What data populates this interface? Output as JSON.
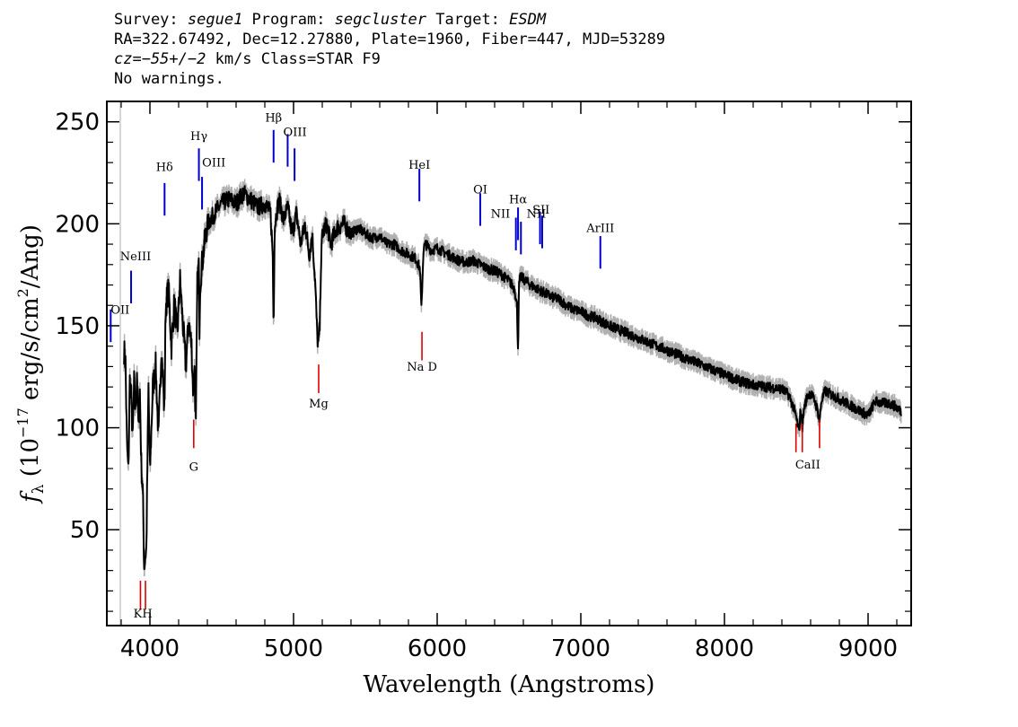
{
  "header": {
    "line1_a": "Survey: ",
    "survey": "segue1",
    "line1_b": " Program: ",
    "program": "segcluster",
    "line1_c": " Target: ",
    "target": "ESDM",
    "line2": "RA=322.67492, Dec=12.27880, Plate=1960, Fiber=447, MJD=53289",
    "line3_cz": "cz=−55+/−2",
    "line3_rest": " km/s Class=STAR F9",
    "line4": "No warnings."
  },
  "chart_data": {
    "type": "line",
    "xlabel": "Wavelength (Angstroms)",
    "ylabel": "f_λ (10^-17 erg/s/cm^2/Ang)",
    "xlim": [
      3700,
      9300
    ],
    "ylim": [
      3,
      260
    ],
    "x_ticks": [
      4000,
      5000,
      6000,
      7000,
      8000,
      9000
    ],
    "y_ticks": [
      50,
      100,
      150,
      200,
      250
    ],
    "grid": false,
    "series": [
      {
        "color": "#000000",
        "x": [
          3820,
          3830,
          3840,
          3850,
          3860,
          3870,
          3880,
          3890,
          3900,
          3910,
          3920,
          3930,
          3940,
          3950,
          3960,
          3968,
          3975,
          3990,
          4000,
          4020,
          4040,
          4060,
          4080,
          4090,
          4100,
          4102,
          4110,
          4130,
          4150,
          4170,
          4190,
          4210,
          4230,
          4250,
          4270,
          4290,
          4300,
          4310,
          4320,
          4330,
          4340,
          4345,
          4350,
          4370,
          4400,
          4450,
          4500,
          4550,
          4600,
          4650,
          4700,
          4750,
          4800,
          4840,
          4855,
          4861,
          4868,
          4880,
          4900,
          4930,
          4960,
          4990,
          5020,
          5050,
          5080,
          5110,
          5130,
          5150,
          5165,
          5172,
          5183,
          5190,
          5200,
          5230,
          5260,
          5300,
          5350,
          5400,
          5450,
          5500,
          5550,
          5600,
          5650,
          5700,
          5750,
          5800,
          5850,
          5880,
          5890,
          5896,
          5905,
          5920,
          5960,
          6000,
          6050,
          6100,
          6150,
          6200,
          6250,
          6300,
          6350,
          6400,
          6450,
          6500,
          6540,
          6555,
          6563,
          6570,
          6580,
          6600,
          6650,
          6700,
          6750,
          6800,
          6850,
          6900,
          6950,
          7000,
          7050,
          7100,
          7150,
          7200,
          7300,
          7400,
          7500,
          7600,
          7700,
          7800,
          7900,
          8000,
          8100,
          8200,
          8300,
          8400,
          8450,
          8480,
          8500,
          8520,
          8530,
          8542,
          8555,
          8580,
          8600,
          8630,
          8650,
          8662,
          8675,
          8700,
          8750,
          8800,
          8850,
          8900,
          8950,
          9000,
          9050,
          9100,
          9150,
          9200,
          9230
        ],
        "values": [
          138,
          132,
          92,
          78,
          123,
          115,
          93,
          122,
          108,
          128,
          100,
          118,
          82,
          70,
          32,
          38,
          40,
          120,
          78,
          120,
          130,
          95,
          140,
          125,
          108,
          115,
          160,
          168,
          140,
          162,
          145,
          172,
          150,
          130,
          152,
          140,
          120,
          128,
          100,
          170,
          180,
          150,
          172,
          185,
          200,
          205,
          210,
          212,
          210,
          215,
          212,
          208,
          210,
          205,
          185,
          148,
          198,
          205,
          212,
          202,
          208,
          195,
          205,
          190,
          200,
          185,
          195,
          172,
          145,
          140,
          150,
          178,
          195,
          200,
          190,
          198,
          200,
          195,
          198,
          195,
          193,
          194,
          190,
          190,
          187,
          185,
          183,
          178,
          158,
          170,
          188,
          190,
          187,
          188,
          186,
          184,
          182,
          181,
          182,
          180,
          178,
          177,
          175,
          172,
          168,
          160,
          138,
          170,
          174,
          173,
          170,
          168,
          166,
          164,
          163,
          160,
          158,
          157,
          155,
          154,
          152,
          150,
          147,
          144,
          141,
          138,
          135,
          132,
          129,
          126,
          123,
          121,
          120,
          119,
          116,
          110,
          105,
          98,
          110,
          100,
          110,
          116,
          117,
          113,
          108,
          103,
          113,
          118,
          116,
          114,
          112,
          110,
          108,
          106,
          113,
          112,
          112,
          110,
          108
        ]
      }
    ],
    "emission_lines": [
      {
        "label": "OII",
        "wavelength": 3727,
        "y": 150
      },
      {
        "label": "NeIII",
        "wavelength": 3869,
        "y": 169
      },
      {
        "label": "Hδ",
        "wavelength": 4102,
        "y": 212
      },
      {
        "label": "Hγ",
        "wavelength": 4341,
        "y": 229
      },
      {
        "label": "OIII",
        "wavelength": 4363,
        "y": 215
      },
      {
        "label": "Hβ",
        "wavelength": 4861,
        "y": 238
      },
      {
        "label": "OIII",
        "wavelength": 4959,
        "y": 236
      },
      {
        "label": "OIII",
        "wavelength": 5007,
        "y": 229
      },
      {
        "label": "HeI",
        "wavelength": 5876,
        "y": 219
      },
      {
        "label": "OI",
        "wavelength": 6300,
        "y": 207
      },
      {
        "label": "NII",
        "wavelength": 6548,
        "y": 195
      },
      {
        "label": "Hα",
        "wavelength": 6563,
        "y": 200
      },
      {
        "label": "NII",
        "wavelength": 6583,
        "y": 193
      },
      {
        "label": "SII",
        "wavelength": 6716,
        "y": 198
      },
      {
        "label": "SII",
        "wavelength": 6731,
        "y": 196
      },
      {
        "label": "ArIII",
        "wavelength": 7136,
        "y": 186
      }
    ],
    "absorption_lines": [
      {
        "label": "K",
        "wavelength": 3934,
        "y": 18
      },
      {
        "label": "H",
        "wavelength": 3969,
        "y": 18
      },
      {
        "label": "G",
        "wavelength": 4305,
        "y": 97
      },
      {
        "label": "Mg",
        "wavelength": 5175,
        "y": 124
      },
      {
        "label": "Na",
        "wavelength": 5894,
        "y": 140
      },
      {
        "label": "CaII",
        "wavelength": 8498,
        "y": 95
      },
      {
        "label": "CaII",
        "wavelength": 8542,
        "y": 95
      },
      {
        "label": "CaII",
        "wavelength": 8662,
        "y": 97
      }
    ],
    "line_text": {
      "OII": "OII",
      "NeIII": "NeIII",
      "Hd": "Hδ",
      "Hg": "Hγ",
      "OIII": "OIII",
      "Hb": "Hβ",
      "HeI": "HeI",
      "OI": "OI",
      "NII": "NII",
      "Ha": "Hα",
      "SII": "SII",
      "ArIII": "ArIII",
      "KH": "KH",
      "G": "G",
      "Mg": "Mg",
      "NaD": "Na  D",
      "CaII": "CaII"
    },
    "colors": {
      "emission": "#0000cc",
      "absorption": "#dd0000",
      "spectrum": "#000000",
      "error": "#b0b0b0"
    }
  }
}
